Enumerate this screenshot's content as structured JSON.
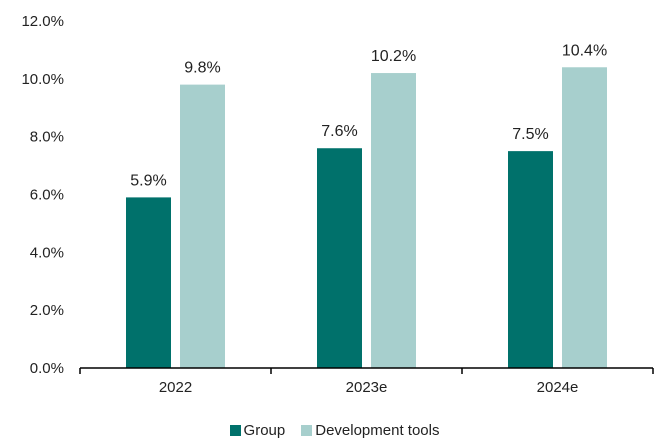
{
  "chart_data": {
    "type": "bar",
    "categories": [
      "2022",
      "2023e",
      "2024e"
    ],
    "series": [
      {
        "name": "Group",
        "values": [
          5.9,
          7.6,
          7.5
        ],
        "labels": [
          "5.9%",
          "7.6%",
          "7.5%"
        ],
        "color": "#00716b"
      },
      {
        "name": "Development tools",
        "values": [
          9.8,
          10.2,
          10.4
        ],
        "labels": [
          "9.8%",
          "10.2%",
          "10.4%"
        ],
        "color": "#a7cfcd"
      }
    ],
    "ylim": [
      0,
      12
    ],
    "yticks": [
      0,
      2,
      4,
      6,
      8,
      10,
      12
    ],
    "ytick_labels": [
      "0.0%",
      "2.0%",
      "4.0%",
      "6.0%",
      "8.0%",
      "10.0%",
      "12.0%"
    ],
    "title": "",
    "xlabel": "",
    "ylabel": "",
    "grid": false,
    "legend_position": "bottom"
  }
}
